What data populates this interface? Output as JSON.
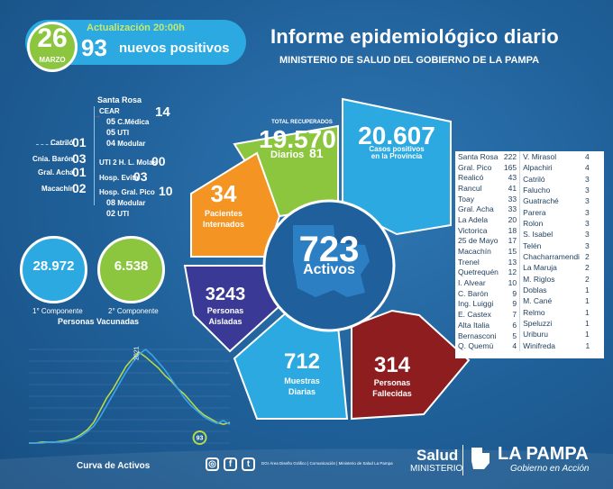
{
  "header": {
    "day": "26",
    "month": "MARZO",
    "update": "Actualización 20:00h",
    "new_positives_count": "93",
    "new_positives_label": "nuevos positivos",
    "title": "Informe epidemiológico diario",
    "subtitle": "MINISTERIO DE SALUD DEL GOBIERNO DE LA PAMPA"
  },
  "hospitalized": {
    "santa_rosa": "Santa Rosa",
    "cear_label": "CEAR",
    "cear_total": "14",
    "cear_items": [
      {
        "num": "05",
        "label": "C.Médica"
      },
      {
        "num": "05",
        "label": "UTI"
      },
      {
        "num": "04",
        "label": "Modular"
      }
    ],
    "uti_molas_label": "UTI 2 H. L. Molas",
    "uti_molas_num": "00",
    "evita_label": "Hosp. Evita",
    "evita_num": "03",
    "pico_label": "Hosp. Gral. Pico",
    "pico_num": "10",
    "pico_items": [
      {
        "num": "08",
        "label": "Modular"
      },
      {
        "num": "02",
        "label": "UTI"
      }
    ],
    "others": [
      {
        "label": "Catriló",
        "num": "01"
      },
      {
        "label": "Cnia. Barón",
        "num": "03"
      },
      {
        "label": "Gral. Acha",
        "num": "01"
      },
      {
        "label": "Macachín",
        "num": "02"
      }
    ]
  },
  "summary": {
    "recovered_label": "TOTAL RECUPERADOS",
    "recovered_total": "19.570",
    "daily_label": "Diarios",
    "daily_recovered": "81",
    "cases_total": "20.607",
    "cases_label_1": "Casos positivos",
    "cases_label_2": "en la Provincia",
    "hospitalized_num": "34",
    "hospitalized_label_1": "Pacientes",
    "hospitalized_label_2": "Internados",
    "active_num": "723",
    "active_label": "Activos",
    "isolated_num": "3243",
    "isolated_label_1": "Personas",
    "isolated_label_2": "Aisladas",
    "samples_num": "712",
    "samples_label_1": "Muestras",
    "samples_label_2": "Diarias",
    "deaths_num": "314",
    "deaths_label_1": "Personas",
    "deaths_label_2": "Fallecidas"
  },
  "localities_left": [
    {
      "name": "Santa Rosa",
      "num": "222"
    },
    {
      "name": "Gral. Pico",
      "num": "165"
    },
    {
      "name": "Realicó",
      "num": "43"
    },
    {
      "name": "Rancul",
      "num": "41"
    },
    {
      "name": "Toay",
      "num": "33"
    },
    {
      "name": "Gral. Acha",
      "num": "33"
    },
    {
      "name": "La Adela",
      "num": "20"
    },
    {
      "name": "Victorica",
      "num": "18"
    },
    {
      "name": "25 de Mayo",
      "num": "17"
    },
    {
      "name": "Macachín",
      "num": "15"
    },
    {
      "name": "Trenel",
      "num": "13"
    },
    {
      "name": "Quetrequén",
      "num": "12"
    },
    {
      "name": "I. Alvear",
      "num": "10"
    },
    {
      "name": "C. Barón",
      "num": "9"
    },
    {
      "name": "Ing. Luiggi",
      "num": "9"
    },
    {
      "name": "E. Castex",
      "num": "7"
    },
    {
      "name": "Alta Italia",
      "num": "6"
    },
    {
      "name": "Bernasconi",
      "num": "5"
    },
    {
      "name": "Q. Quemú",
      "num": "4"
    }
  ],
  "localities_right": [
    {
      "name": "V. Mirasol",
      "num": "4"
    },
    {
      "name": "Alpachiri",
      "num": "4"
    },
    {
      "name": "Catriló",
      "num": "3"
    },
    {
      "name": "Falucho",
      "num": "3"
    },
    {
      "name": "Guatraché",
      "num": "3"
    },
    {
      "name": "Parera",
      "num": "3"
    },
    {
      "name": "Rolon",
      "num": "3"
    },
    {
      "name": "S. Isabel",
      "num": "3"
    },
    {
      "name": "Telén",
      "num": "3"
    },
    {
      "name": "Chacharramendi",
      "num": "2"
    },
    {
      "name": "La Maruja",
      "num": "2"
    },
    {
      "name": "M. Riglos",
      "num": "2"
    },
    {
      "name": "Doblas",
      "num": "1"
    },
    {
      "name": "M. Cané",
      "num": "1"
    },
    {
      "name": "Relmo",
      "num": "1"
    },
    {
      "name": "Speluzzi",
      "num": "1"
    },
    {
      "name": "Uriburu",
      "num": "1"
    },
    {
      "name": "Winifreda",
      "num": "1"
    }
  ],
  "vaccination": {
    "first_num": "28.972",
    "first_label": "1° Componente",
    "second_num": "6.538",
    "second_label": "2° Componente",
    "caption": "Personas Vacunadas"
  },
  "chart_data": {
    "type": "line",
    "title": "Curva de Activos",
    "year_annotation": "2021",
    "current_value_label": "93",
    "series": [
      {
        "values": [
          0,
          0,
          1,
          1,
          1,
          2,
          3,
          5,
          9,
          14,
          22,
          35,
          48,
          58,
          70,
          82,
          90,
          97,
          92,
          86,
          80,
          72,
          66,
          58,
          52,
          44,
          36,
          30,
          26,
          22,
          20,
          22
        ]
      },
      {
        "values": [
          0,
          0,
          0,
          1,
          1,
          1,
          2,
          4,
          7,
          12,
          18,
          28,
          40,
          52,
          64,
          76,
          86,
          95,
          100,
          94,
          86,
          78,
          68,
          58,
          48,
          40,
          34,
          28,
          24,
          21,
          24,
          20
        ]
      }
    ],
    "colors": [
      "#b6d94a",
      "#3aa3e8"
    ]
  },
  "footer": {
    "credits": "DGI Área Diseño Gráfico  |  Comunicación  |  Ministerio de Salud La Pampa",
    "salud": "Salud",
    "ministerio": "MINISTERIO",
    "province": "LA PAMPA",
    "tagline": "Gobierno en Acción",
    "social": [
      "instagram-icon",
      "facebook-icon",
      "twitter-icon"
    ]
  },
  "colors": {
    "green": "#8cc63f",
    "cyan": "#2ba9e0",
    "orange": "#f39423",
    "purple": "#3a3996",
    "maroon": "#8e1d20",
    "blue": "#2a67ad"
  }
}
